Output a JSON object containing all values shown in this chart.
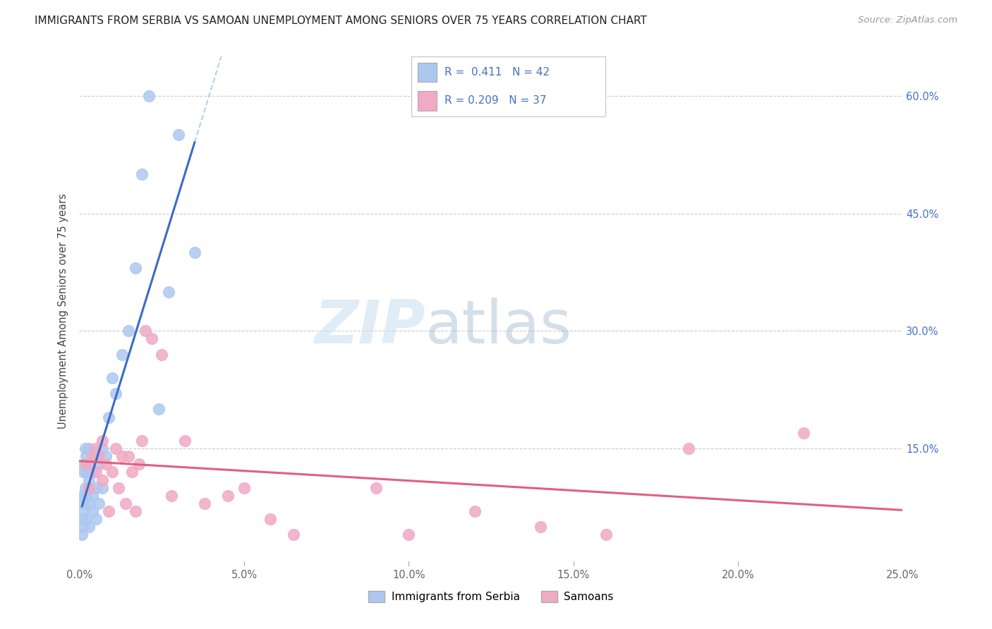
{
  "title": "IMMIGRANTS FROM SERBIA VS SAMOAN UNEMPLOYMENT AMONG SENIORS OVER 75 YEARS CORRELATION CHART",
  "source": "Source: ZipAtlas.com",
  "ylabel": "Unemployment Among Seniors over 75 years",
  "xlim": [
    0.0,
    0.25
  ],
  "ylim": [
    0.0,
    0.65
  ],
  "x_ticks": [
    0.0,
    0.05,
    0.1,
    0.15,
    0.2,
    0.25
  ],
  "y_ticks": [
    0.0,
    0.15,
    0.3,
    0.45,
    0.6
  ],
  "serbia_R": 0.411,
  "serbia_N": 42,
  "samoan_R": 0.209,
  "samoan_N": 37,
  "serbia_color": "#adc8f0",
  "samoan_color": "#f0aac4",
  "serbia_line_color": "#3a6cc4",
  "samoan_line_color": "#e06080",
  "serbia_dash_color": "#b8d0e8",
  "watermark_zip": "ZIP",
  "watermark_atlas": "atlas",
  "serbia_x": [
    0.0008,
    0.0008,
    0.001,
    0.001,
    0.0012,
    0.0012,
    0.0015,
    0.0015,
    0.0018,
    0.0018,
    0.002,
    0.002,
    0.002,
    0.002,
    0.003,
    0.003,
    0.003,
    0.003,
    0.003,
    0.004,
    0.004,
    0.004,
    0.005,
    0.005,
    0.005,
    0.006,
    0.006,
    0.007,
    0.007,
    0.008,
    0.009,
    0.01,
    0.011,
    0.013,
    0.015,
    0.017,
    0.019,
    0.021,
    0.024,
    0.027,
    0.03,
    0.035
  ],
  "serbia_y": [
    0.04,
    0.06,
    0.05,
    0.09,
    0.08,
    0.12,
    0.07,
    0.13,
    0.1,
    0.15,
    0.06,
    0.09,
    0.12,
    0.14,
    0.05,
    0.08,
    0.11,
    0.13,
    0.15,
    0.07,
    0.09,
    0.12,
    0.06,
    0.1,
    0.14,
    0.08,
    0.13,
    0.1,
    0.15,
    0.14,
    0.19,
    0.24,
    0.22,
    0.27,
    0.3,
    0.38,
    0.5,
    0.6,
    0.2,
    0.35,
    0.55,
    0.4
  ],
  "samoan_x": [
    0.002,
    0.003,
    0.004,
    0.005,
    0.005,
    0.006,
    0.007,
    0.007,
    0.008,
    0.009,
    0.01,
    0.011,
    0.012,
    0.013,
    0.014,
    0.015,
    0.016,
    0.017,
    0.018,
    0.019,
    0.02,
    0.022,
    0.025,
    0.028,
    0.032,
    0.038,
    0.045,
    0.05,
    0.058,
    0.065,
    0.09,
    0.1,
    0.12,
    0.14,
    0.16,
    0.185,
    0.22
  ],
  "samoan_y": [
    0.13,
    0.1,
    0.14,
    0.12,
    0.15,
    0.14,
    0.11,
    0.16,
    0.13,
    0.07,
    0.12,
    0.15,
    0.1,
    0.14,
    0.08,
    0.14,
    0.12,
    0.07,
    0.13,
    0.16,
    0.3,
    0.29,
    0.27,
    0.09,
    0.16,
    0.08,
    0.09,
    0.1,
    0.06,
    0.04,
    0.1,
    0.04,
    0.07,
    0.05,
    0.04,
    0.15,
    0.17
  ]
}
